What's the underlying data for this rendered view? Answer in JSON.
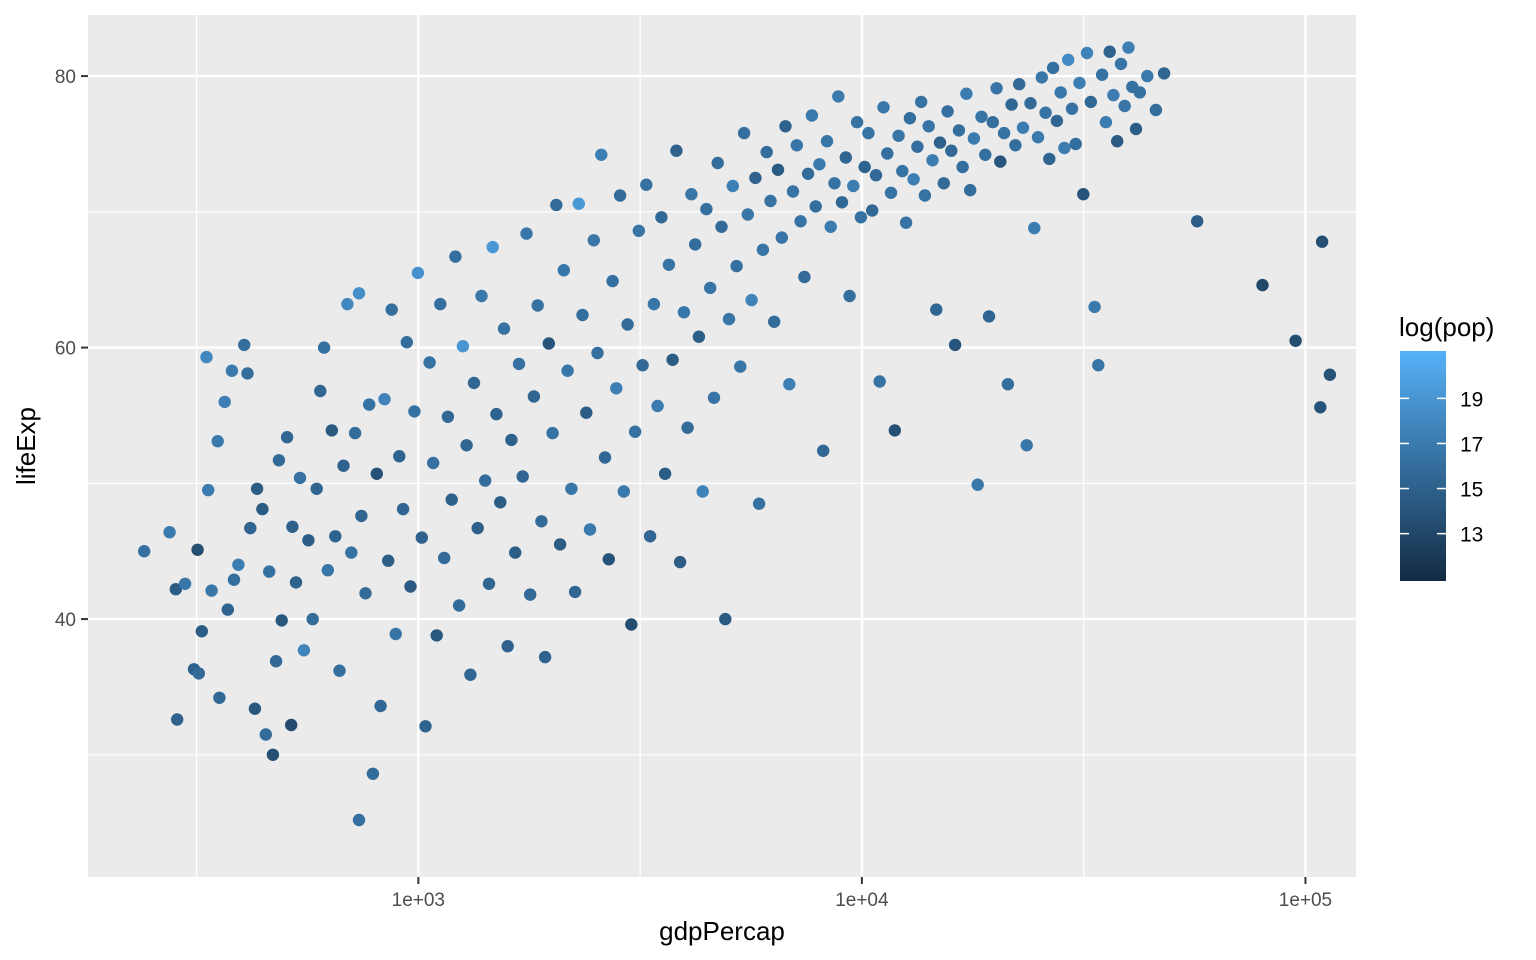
{
  "chart_data": {
    "type": "scatter",
    "title": "",
    "xlabel": "gdpPercap",
    "ylabel": "lifeExp",
    "x_scale": "log10",
    "xlim": [
      180,
      130000
    ],
    "ylim": [
      21,
      84.5
    ],
    "x_ticks": [
      {
        "value": 1000,
        "label": "1e+03"
      },
      {
        "value": 10000,
        "label": "1e+04"
      },
      {
        "value": 100000,
        "label": "1e+05"
      }
    ],
    "x_minor_ticks": [
      316.2,
      3162.3,
      31622.8
    ],
    "y_ticks": [
      {
        "value": 40,
        "label": "40"
      },
      {
        "value": 60,
        "label": "60"
      },
      {
        "value": 80,
        "label": "80"
      }
    ],
    "y_minor_ticks": [
      30,
      50,
      70
    ],
    "grid": true,
    "panel_background": "#ebebeb",
    "grid_color": "#ffffff",
    "legend": {
      "title": "log(pop)",
      "placement": "right",
      "range": [
        10.9,
        21.1
      ],
      "breaks": [
        {
          "value": 13,
          "label": "13"
        },
        {
          "value": 15,
          "label": "15"
        },
        {
          "value": 17,
          "label": "17"
        },
        {
          "value": 19,
          "label": "19"
        }
      ],
      "color_low": "#132b43",
      "color_high": "#56b1f7"
    },
    "points": [
      [
        241,
        45.0,
        16.2
      ],
      [
        275,
        46.4,
        16.8
      ],
      [
        284,
        42.2,
        14.6
      ],
      [
        286,
        32.6,
        15.1
      ],
      [
        298,
        42.6,
        16.7
      ],
      [
        312,
        36.3,
        15.0
      ],
      [
        318,
        45.1,
        13.6
      ],
      [
        320,
        36.0,
        15.7
      ],
      [
        325,
        39.1,
        14.7
      ],
      [
        333,
        59.3,
        17.9
      ],
      [
        336,
        49.5,
        17.0
      ],
      [
        342,
        42.1,
        16.7
      ],
      [
        353,
        53.1,
        16.8
      ],
      [
        356,
        34.2,
        15.5
      ],
      [
        366,
        56.0,
        17.4
      ],
      [
        372,
        40.7,
        15.2
      ],
      [
        380,
        58.3,
        16.9
      ],
      [
        384,
        42.9,
        16.0
      ],
      [
        393,
        44.0,
        17.1
      ],
      [
        405,
        60.2,
        16.0
      ],
      [
        412,
        58.1,
        15.9
      ],
      [
        418,
        46.7,
        15.3
      ],
      [
        428,
        33.4,
        14.3
      ],
      [
        433,
        49.6,
        14.6
      ],
      [
        445,
        48.1,
        14.6
      ],
      [
        453,
        31.5,
        15.8
      ],
      [
        461,
        43.5,
        16.1
      ],
      [
        470,
        30.0,
        13.6
      ],
      [
        478,
        36.9,
        15.6
      ],
      [
        485,
        51.7,
        15.6
      ],
      [
        492,
        39.9,
        14.3
      ],
      [
        506,
        53.4,
        15.4
      ],
      [
        517,
        32.2,
        13.4
      ],
      [
        520,
        46.8,
        15.0
      ],
      [
        530,
        42.7,
        15.1
      ],
      [
        541,
        50.4,
        16.2
      ],
      [
        552,
        37.7,
        17.8
      ],
      [
        565,
        45.8,
        14.8
      ],
      [
        578,
        40.0,
        15.8
      ],
      [
        590,
        49.6,
        15.3
      ],
      [
        601,
        56.8,
        15.4
      ],
      [
        613,
        60.0,
        16.2
      ],
      [
        625,
        43.6,
        16.6
      ],
      [
        638,
        53.9,
        14.4
      ],
      [
        650,
        46.1,
        15.2
      ],
      [
        664,
        36.2,
        16.0
      ],
      [
        678,
        51.3,
        15.1
      ],
      [
        692,
        63.2,
        18.0
      ],
      [
        706,
        44.9,
        16.3
      ],
      [
        720,
        53.7,
        15.8
      ],
      [
        735,
        64.0,
        18.5
      ],
      [
        735,
        25.2,
        16.1
      ],
      [
        744,
        47.6,
        15.3
      ],
      [
        760,
        41.9,
        15.7
      ],
      [
        775,
        55.8,
        16.3
      ],
      [
        790,
        28.6,
        15.8
      ],
      [
        806,
        50.7,
        13.8
      ],
      [
        822,
        33.6,
        15.5
      ],
      [
        839,
        56.2,
        17.7
      ],
      [
        855,
        44.3,
        14.8
      ],
      [
        871,
        62.8,
        16.0
      ],
      [
        889,
        38.9,
        16.5
      ],
      [
        906,
        52.0,
        15.2
      ],
      [
        924,
        48.1,
        15.3
      ],
      [
        942,
        60.4,
        16.0
      ],
      [
        960,
        42.4,
        14.5
      ],
      [
        980,
        55.3,
        16.3
      ],
      [
        998,
        65.5,
        18.7
      ],
      [
        1018,
        46.0,
        15.0
      ],
      [
        1038,
        32.1,
        15.1
      ],
      [
        1060,
        58.9,
        16.3
      ],
      [
        1080,
        51.5,
        16.2
      ],
      [
        1100,
        38.8,
        14.3
      ],
      [
        1121,
        63.2,
        16.1
      ],
      [
        1144,
        44.5,
        15.7
      ],
      [
        1166,
        54.9,
        15.5
      ],
      [
        1189,
        48.8,
        14.9
      ],
      [
        1212,
        66.7,
        16.1
      ],
      [
        1236,
        41.0,
        15.8
      ],
      [
        1260,
        60.1,
        19.0
      ],
      [
        1285,
        52.8,
        15.4
      ],
      [
        1310,
        35.9,
        15.4
      ],
      [
        1335,
        57.4,
        15.4
      ],
      [
        1361,
        46.7,
        14.9
      ],
      [
        1388,
        63.8,
        16.7
      ],
      [
        1415,
        50.2,
        15.9
      ],
      [
        1443,
        42.6,
        15.4
      ],
      [
        1471,
        67.4,
        19.1
      ],
      [
        1500,
        55.1,
        15.2
      ],
      [
        1530,
        48.6,
        14.6
      ],
      [
        1560,
        61.4,
        16.4
      ],
      [
        1590,
        38.0,
        15.1
      ],
      [
        1621,
        53.2,
        15.0
      ],
      [
        1653,
        44.9,
        14.7
      ],
      [
        1686,
        58.8,
        16.2
      ],
      [
        1719,
        50.5,
        15.4
      ],
      [
        1753,
        68.4,
        16.7
      ],
      [
        1787,
        41.8,
        15.6
      ],
      [
        1822,
        56.4,
        15.4
      ],
      [
        1858,
        63.1,
        16.3
      ],
      [
        1894,
        47.2,
        15.7
      ],
      [
        1931,
        37.2,
        15.2
      ],
      [
        1969,
        60.3,
        14.1
      ],
      [
        2008,
        53.7,
        16.3
      ],
      [
        2047,
        70.5,
        15.8
      ],
      [
        2087,
        45.5,
        14.6
      ],
      [
        2128,
        65.7,
        16.6
      ],
      [
        2170,
        58.3,
        16.7
      ],
      [
        2213,
        49.6,
        16.6
      ],
      [
        2256,
        42.0,
        15.3
      ],
      [
        2300,
        70.6,
        19.3
      ],
      [
        2345,
        62.4,
        16.0
      ],
      [
        2391,
        55.2,
        14.8
      ],
      [
        2438,
        46.6,
        16.8
      ],
      [
        2486,
        67.9,
        16.7
      ],
      [
        2535,
        59.6,
        16.1
      ],
      [
        2585,
        74.2,
        17.3
      ],
      [
        2636,
        51.9,
        15.5
      ],
      [
        2688,
        44.4,
        14.0
      ],
      [
        2741,
        64.9,
        16.1
      ],
      [
        2795,
        57.0,
        17.3
      ],
      [
        2850,
        71.2,
        15.8
      ],
      [
        2906,
        49.4,
        16.8
      ],
      [
        2963,
        61.7,
        15.8
      ],
      [
        3021,
        39.6,
        13.5
      ],
      [
        3081,
        53.8,
        16.2
      ],
      [
        3141,
        68.6,
        16.5
      ],
      [
        3203,
        58.7,
        15.6
      ],
      [
        3266,
        72.0,
        16.2
      ],
      [
        3330,
        46.1,
        15.4
      ],
      [
        3396,
        63.2,
        16.6
      ],
      [
        3463,
        55.7,
        17.0
      ],
      [
        3531,
        69.6,
        15.6
      ],
      [
        3600,
        50.7,
        14.6
      ],
      [
        3671,
        66.1,
        16.4
      ],
      [
        3743,
        59.1,
        14.6
      ],
      [
        3817,
        74.5,
        15.0
      ],
      [
        3892,
        44.2,
        14.7
      ],
      [
        3969,
        62.6,
        16.6
      ],
      [
        4047,
        54.1,
        15.8
      ],
      [
        4127,
        71.3,
        16.6
      ],
      [
        4208,
        67.6,
        15.9
      ],
      [
        4291,
        60.8,
        14.7
      ],
      [
        4376,
        49.4,
        17.5
      ],
      [
        4462,
        70.2,
        16.1
      ],
      [
        4550,
        64.4,
        16.5
      ],
      [
        4640,
        56.3,
        16.5
      ],
      [
        4731,
        73.6,
        15.9
      ],
      [
        4825,
        68.9,
        15.7
      ],
      [
        4920,
        40.0,
        14.5
      ],
      [
        5017,
        62.1,
        16.6
      ],
      [
        5116,
        71.9,
        17.4
      ],
      [
        5217,
        66.0,
        16.1
      ],
      [
        5320,
        58.6,
        16.6
      ],
      [
        5425,
        75.8,
        16.1
      ],
      [
        5532,
        69.8,
        16.7
      ],
      [
        5641,
        63.5,
        17.6
      ],
      [
        5753,
        72.5,
        15.0
      ],
      [
        5866,
        48.5,
        16.2
      ],
      [
        5982,
        67.2,
        16.5
      ],
      [
        6100,
        74.4,
        15.9
      ],
      [
        6221,
        70.8,
        16.3
      ],
      [
        6344,
        61.9,
        15.8
      ],
      [
        6469,
        73.1,
        14.5
      ],
      [
        6597,
        68.1,
        16.5
      ],
      [
        6727,
        76.3,
        15.0
      ],
      [
        6860,
        57.3,
        17.4
      ],
      [
        6995,
        71.5,
        16.4
      ],
      [
        7134,
        74.9,
        16.6
      ],
      [
        7275,
        69.3,
        16.4
      ],
      [
        7418,
        65.2,
        15.7
      ],
      [
        7565,
        72.8,
        15.8
      ],
      [
        7714,
        77.1,
        16.8
      ],
      [
        7867,
        70.4,
        16.0
      ],
      [
        8022,
        73.5,
        16.9
      ],
      [
        8181,
        52.4,
        15.5
      ],
      [
        8342,
        75.2,
        16.6
      ],
      [
        8507,
        68.9,
        16.9
      ],
      [
        8675,
        72.1,
        16.3
      ],
      [
        8846,
        78.5,
        16.9
      ],
      [
        9021,
        70.7,
        15.5
      ],
      [
        9199,
        74.0,
        15.3
      ],
      [
        9381,
        63.8,
        16.0
      ],
      [
        9566,
        71.9,
        17.2
      ],
      [
        9755,
        76.6,
        16.3
      ],
      [
        9948,
        69.6,
        16.2
      ],
      [
        10144,
        73.3,
        15.2
      ],
      [
        10345,
        75.8,
        16.4
      ],
      [
        10549,
        70.1,
        15.5
      ],
      [
        10758,
        72.7,
        15.6
      ],
      [
        10970,
        57.5,
        16.3
      ],
      [
        11187,
        77.7,
        16.7
      ],
      [
        11408,
        74.3,
        16.1
      ],
      [
        11633,
        71.4,
        16.4
      ],
      [
        11863,
        53.9,
        13.7
      ],
      [
        12097,
        75.6,
        16.5
      ],
      [
        12336,
        73.0,
        16.3
      ],
      [
        12580,
        69.2,
        16.4
      ],
      [
        12828,
        76.9,
        16.0
      ],
      [
        13082,
        72.4,
        17.3
      ],
      [
        13340,
        74.8,
        16.1
      ],
      [
        13604,
        78.1,
        16.3
      ],
      [
        13872,
        71.2,
        16.2
      ],
      [
        14146,
        76.3,
        16.4
      ],
      [
        14426,
        73.8,
        17.1
      ],
      [
        14711,
        62.8,
        15.4
      ],
      [
        15002,
        75.1,
        15.0
      ],
      [
        15298,
        72.1,
        15.7
      ],
      [
        15600,
        77.4,
        16.1
      ],
      [
        15909,
        74.5,
        15.6
      ],
      [
        16223,
        60.2,
        14.0
      ],
      [
        16544,
        76.0,
        16.0
      ],
      [
        16870,
        73.3,
        16.1
      ],
      [
        17204,
        78.7,
        17.0
      ],
      [
        17544,
        71.6,
        16.0
      ],
      [
        17890,
        75.4,
        17.0
      ],
      [
        18244,
        49.9,
        16.7
      ],
      [
        18604,
        77.0,
        16.5
      ],
      [
        18972,
        74.2,
        16.1
      ],
      [
        19347,
        62.3,
        15.3
      ],
      [
        19729,
        76.6,
        16.0
      ],
      [
        20119,
        79.1,
        16.5
      ],
      [
        20517,
        73.7,
        14.2
      ],
      [
        20922,
        75.8,
        16.3
      ],
      [
        21336,
        57.3,
        16.0
      ],
      [
        21757,
        77.9,
        15.5
      ],
      [
        22187,
        74.9,
        16.0
      ],
      [
        22626,
        79.4,
        15.6
      ],
      [
        23073,
        76.2,
        17.1
      ],
      [
        23529,
        52.8,
        16.7
      ],
      [
        23994,
        78.0,
        15.7
      ],
      [
        24468,
        68.8,
        17.1
      ],
      [
        24952,
        75.5,
        16.9
      ],
      [
        25445,
        79.9,
        16.7
      ],
      [
        25948,
        77.3,
        16.4
      ],
      [
        26460,
        73.9,
        15.3
      ],
      [
        26983,
        80.6,
        16.1
      ],
      [
        27517,
        76.7,
        15.4
      ],
      [
        28060,
        78.8,
        16.7
      ],
      [
        28615,
        74.7,
        17.1
      ],
      [
        29180,
        81.2,
        18.2
      ],
      [
        29757,
        77.6,
        16.2
      ],
      [
        30345,
        75.0,
        16.0
      ],
      [
        30945,
        79.5,
        17.2
      ],
      [
        31556,
        71.3,
        14.0
      ],
      [
        32180,
        81.7,
        17.5
      ],
      [
        32816,
        78.1,
        15.5
      ],
      [
        33464,
        63.0,
        16.9
      ],
      [
        34125,
        58.7,
        16.6
      ],
      [
        34800,
        80.1,
        16.3
      ],
      [
        35487,
        76.6,
        17.1
      ],
      [
        36189,
        81.8,
        15.2
      ],
      [
        36904,
        78.6,
        17.1
      ],
      [
        37633,
        75.2,
        14.5
      ],
      [
        38377,
        80.9,
        16.4
      ],
      [
        39135,
        77.8,
        16.5
      ],
      [
        39909,
        82.1,
        17.3
      ],
      [
        40697,
        79.2,
        16.3
      ],
      [
        41501,
        76.1,
        14.8
      ],
      [
        42321,
        78.8,
        16.2
      ],
      [
        44000,
        80.0,
        16.8
      ],
      [
        46000,
        77.5,
        15.9
      ],
      [
        48000,
        80.2,
        15.3
      ],
      [
        57000,
        69.3,
        14.7
      ],
      [
        80000,
        64.6,
        13.2
      ],
      [
        95000,
        60.5,
        13.6
      ],
      [
        108000,
        55.6,
        14.0
      ],
      [
        109000,
        67.8,
        13.6
      ],
      [
        113500,
        58.0,
        13.9
      ]
    ]
  }
}
